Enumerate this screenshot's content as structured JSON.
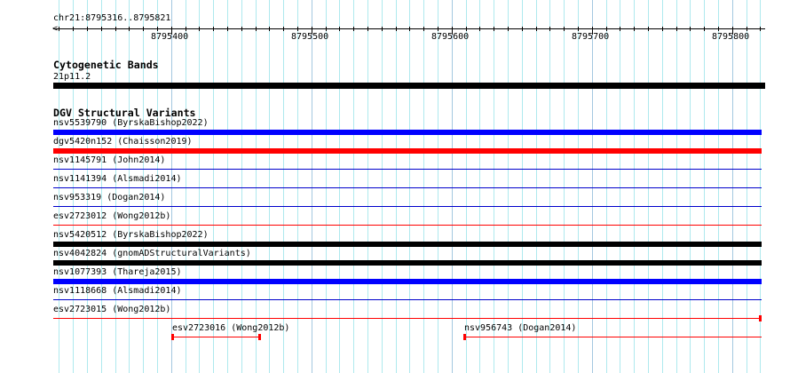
{
  "ruler": {
    "location": "chr21:8795316..8795821",
    "start": 8795316,
    "end": 8795821,
    "labels": [
      "8795400",
      "8795500",
      "8795600",
      "8795700",
      "8795800"
    ]
  },
  "tracks": [
    {
      "title": "Cytogenetic Bands",
      "features": [
        {
          "label": "21p11.2",
          "start": 8795316,
          "end": 8795821,
          "color": "#000000",
          "thick": true
        }
      ]
    },
    {
      "title": "DGV Structural Variants",
      "features": [
        {
          "label": "nsv5539790 (ByrskaBishop2022)",
          "start": 8795316,
          "end": 8795821,
          "color": "#0000ff",
          "thick": true
        },
        {
          "label": "dgv5420n152 (Chaisson2019)",
          "start": 8795316,
          "end": 8795821,
          "color": "#ff0000",
          "thick": true
        },
        {
          "label": "nsv1145791 (John2014)",
          "start": 8795316,
          "end": 8795821,
          "color": "#0000cc",
          "thick": false
        },
        {
          "label": "nsv1141394 (Alsmadi2014)",
          "start": 8795316,
          "end": 8795821,
          "color": "#0000cc",
          "thick": false
        },
        {
          "label": "nsv953319 (Dogan2014)",
          "start": 8795316,
          "end": 8795821,
          "color": "#0000cc",
          "thick": false
        },
        {
          "label": "esv2723012 (Wong2012b)",
          "start": 8795316,
          "end": 8795821,
          "color": "#ff0000",
          "thick": false
        },
        {
          "label": "nsv5420512 (ByrskaBishop2022)",
          "start": 8795316,
          "end": 8795821,
          "color": "#000000",
          "thick": true
        },
        {
          "label": "nsv4042824 (gnomADStructuralVariants)",
          "start": 8795316,
          "end": 8795821,
          "color": "#000000",
          "thick": true
        },
        {
          "label": "nsv1077393 (Thareja2015)",
          "start": 8795316,
          "end": 8795821,
          "color": "#0000ff",
          "thick": true
        },
        {
          "label": "nsv1118668 (Alsmadi2014)",
          "start": 8795316,
          "end": 8795821,
          "color": "#0000cc",
          "thick": false
        },
        {
          "label": "esv2723015 (Wong2012b)",
          "start": 8795316,
          "end": 8795821,
          "color": "#ff0000",
          "thick": false,
          "capEnd": true
        },
        {
          "label": "esv2723016 (Wong2012b)",
          "start": 8795401,
          "end": 8795464,
          "color": "#ff0000",
          "thick": false,
          "capStart": true,
          "capEnd": true,
          "row": 11
        },
        {
          "label": "nsv956743 (Dogan2014)",
          "start": 8795609,
          "end": 8795821,
          "color": "#ff0000",
          "thick": false,
          "capStart": true,
          "row": 11
        }
      ]
    }
  ]
}
